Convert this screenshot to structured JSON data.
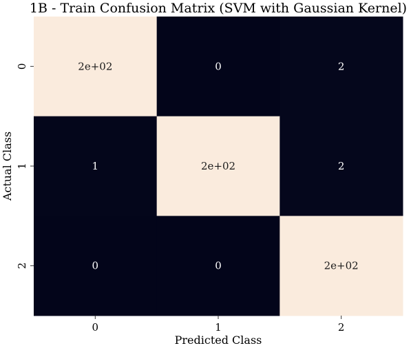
{
  "chart_data": {
    "type": "heatmap",
    "title": "1B - Train Confusion Matrix (SVM with Gaussian Kernel)",
    "xlabel": "Predicted Class",
    "ylabel": "Actual Class",
    "x_categories": [
      "0",
      "1",
      "2"
    ],
    "y_categories": [
      "0",
      "1",
      "2"
    ],
    "values": [
      [
        200,
        0,
        2
      ],
      [
        1,
        200,
        2
      ],
      [
        0,
        0,
        200
      ]
    ],
    "annotations": [
      [
        "2e+02",
        "0",
        "2"
      ],
      [
        "1",
        "2e+02",
        "2"
      ],
      [
        "0",
        "0",
        "2e+02"
      ]
    ],
    "colorbar": false,
    "colors": {
      "low": "#03051a",
      "high": "#faebdd",
      "text_on_dark": "#ffffff",
      "text_on_light": "#1a1a1a"
    }
  }
}
